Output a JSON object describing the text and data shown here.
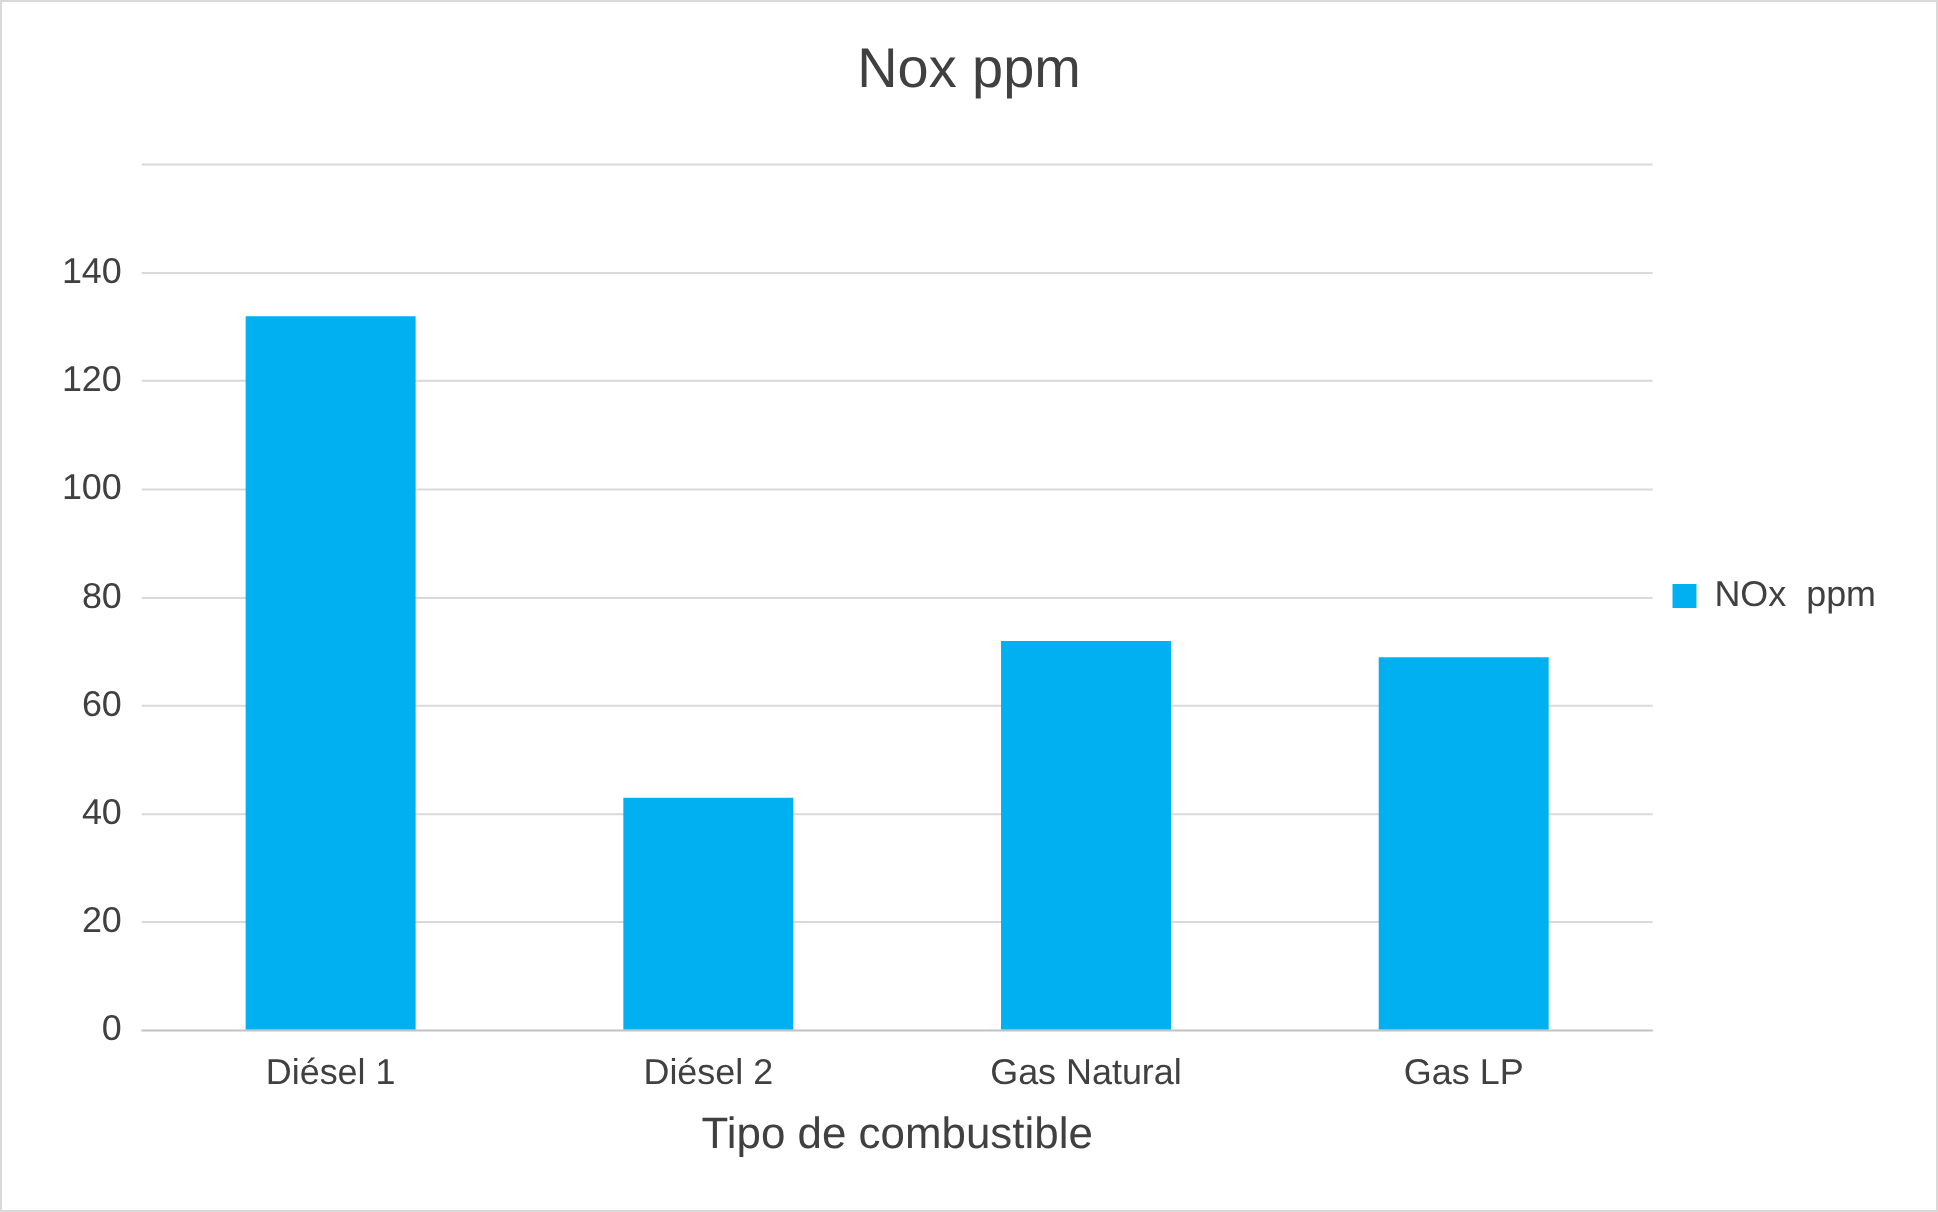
{
  "chart_data": {
    "type": "bar",
    "title": "Nox ppm",
    "xlabel": "Tipo de combustible",
    "categories": [
      "Diésel 1",
      "Diésel 2",
      "Gas Natural",
      "Gas LP"
    ],
    "series": [
      {
        "name": "NOx  ppm",
        "color": "#00b0f0",
        "values": [
          132,
          43,
          72,
          69
        ]
      }
    ],
    "ylim": [
      0,
      160
    ],
    "yticks": [
      0,
      20,
      40,
      60,
      80,
      100,
      120,
      140,
      {
        "value": 160,
        "label": null
      }
    ],
    "grid": "y",
    "legend": "right"
  }
}
